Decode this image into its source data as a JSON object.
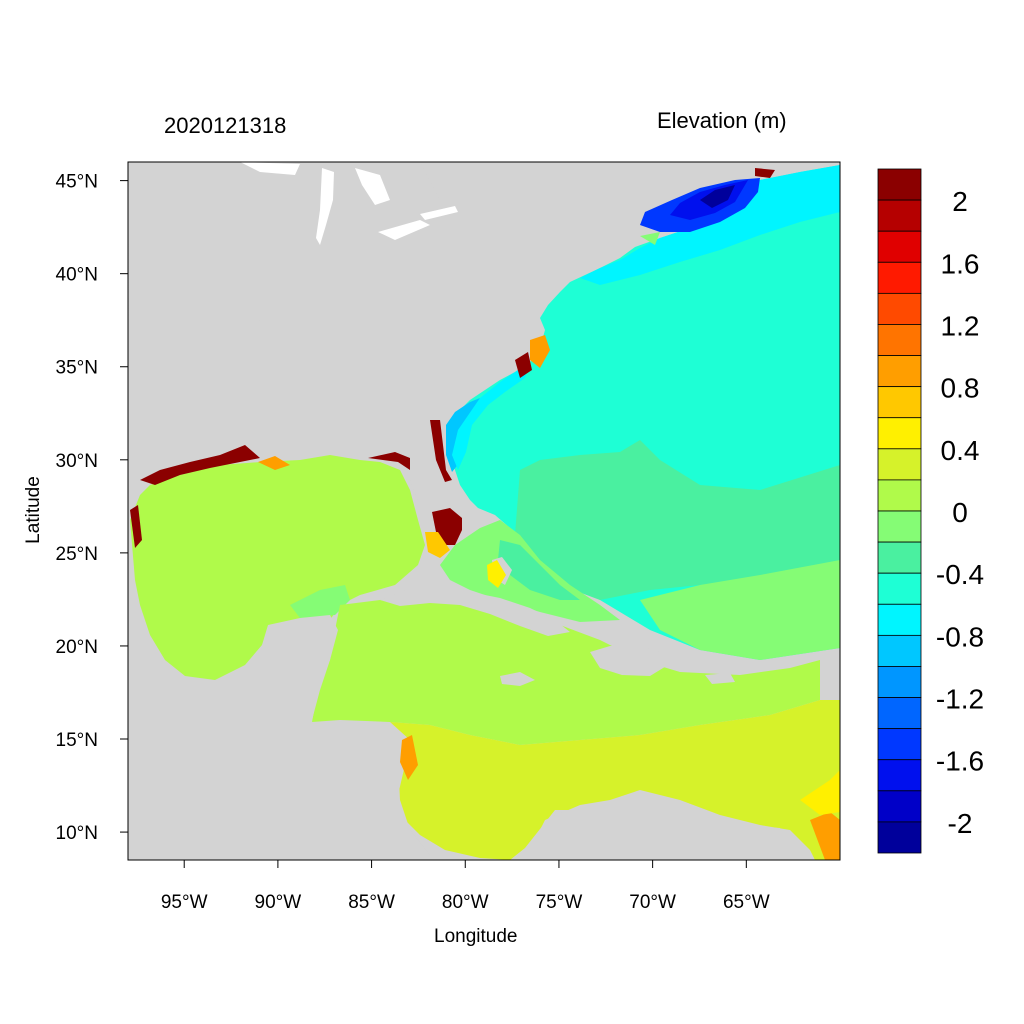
{
  "title_left": "2020121318",
  "title_right": "Elevation (m)",
  "xlabel": "Longitude",
  "ylabel": "Latitude",
  "x_ticks": [
    "95°W",
    "90°W",
    "85°W",
    "80°W",
    "75°W",
    "70°W",
    "65°W"
  ],
  "y_ticks": [
    "45°N",
    "40°N",
    "35°N",
    "30°N",
    "25°N",
    "20°N",
    "15°N",
    "10°N"
  ],
  "chart_data": {
    "type": "heatmap",
    "title": "2020121318",
    "subtitle": "Elevation (m)",
    "xlabel": "Longitude",
    "ylabel": "Latitude",
    "x_tick_values": [
      -95,
      -90,
      -85,
      -80,
      -75,
      -70,
      -65
    ],
    "y_tick_values": [
      45,
      40,
      35,
      30,
      25,
      20,
      15,
      10
    ],
    "xlim": [
      -98,
      -60
    ],
    "ylim": [
      8.5,
      46
    ],
    "land_color": "#d3d3d3",
    "colorbar": {
      "labels": [
        "2",
        "1.6",
        "1.2",
        "0.8",
        "0.4",
        "0",
        "-0.4",
        "-0.8",
        "-1.2",
        "-1.6",
        "-2"
      ],
      "label_values": [
        2,
        1.6,
        1.2,
        0.8,
        0.4,
        0,
        -0.4,
        -0.8,
        -1.2,
        -1.6,
        -2
      ],
      "colors": [
        "#8b0000",
        "#b50000",
        "#e00000",
        "#ff1a00",
        "#ff4a00",
        "#ff7400",
        "#ff9e00",
        "#ffc800",
        "#fff000",
        "#d6f22a",
        "#b0fa4a",
        "#85fc75",
        "#4af0a0",
        "#1effd5",
        "#00f5ff",
        "#00c7ff",
        "#0096ff",
        "#0066ff",
        "#0038ff",
        "#0010ee",
        "#0000c8",
        "#00009b"
      ]
    }
  }
}
